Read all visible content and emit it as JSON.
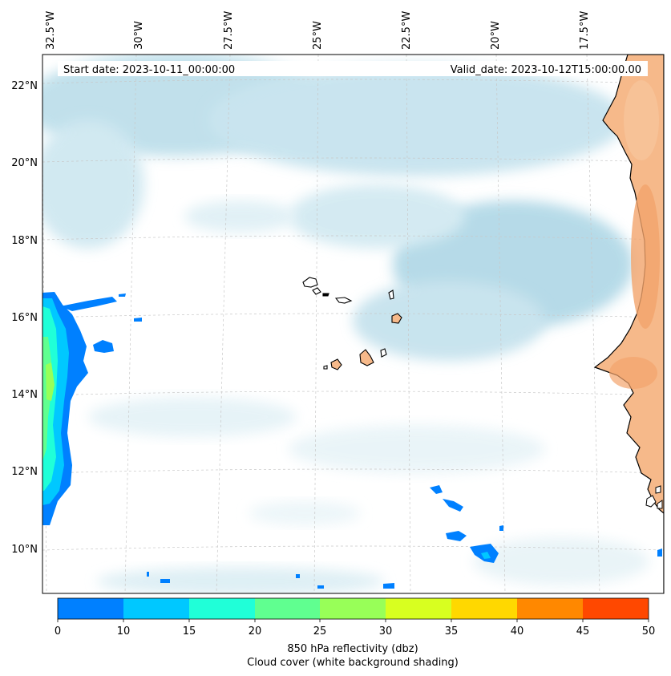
{
  "header": {
    "start_label": "Start date: 2023-10-11_00:00:00",
    "valid_label": "Valid_date: 2023-10-12T15:00:00.00"
  },
  "map": {
    "lon_labels": [
      "32.5°W",
      "30°W",
      "27.5°W",
      "25°W",
      "22.5°W",
      "20°W",
      "17.5°W"
    ],
    "lat_labels": [
      "22°N",
      "20°N",
      "18°N",
      "16°N",
      "14°N",
      "12°N",
      "10°N"
    ],
    "colors": {
      "ocean": "#ffffff",
      "cloud": "#a9d6e5",
      "land": "#f6b98a",
      "land_dark": "#f3a46c",
      "coastline": "#000000",
      "grid": "#c8c8c8"
    }
  },
  "colorbar": {
    "ticks": [
      "0",
      "10",
      "15",
      "20",
      "25",
      "30",
      "35",
      "40",
      "45",
      "50"
    ],
    "colors": [
      "#0080ff",
      "#00c8ff",
      "#20ffd8",
      "#60ff90",
      "#98ff58",
      "#d8ff20",
      "#ffd800",
      "#ff8800",
      "#ff4800"
    ],
    "label_line1": "850 hPa reflectivity (dbz)",
    "label_line2": "Cloud cover (white background shading)"
  }
}
